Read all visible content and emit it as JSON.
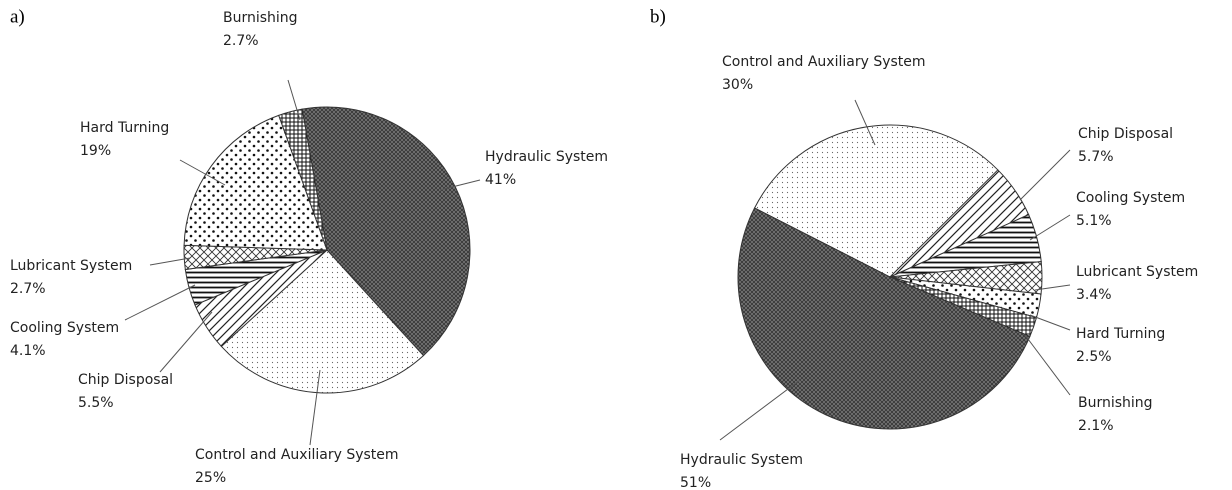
{
  "chart_data": [
    {
      "type": "pie",
      "title": "a)",
      "categories": [
        "Hydraulic System",
        "Control and Auxiliary System",
        "Chip Disposal",
        "Cooling System",
        "Lubricant System",
        "Hard Turning",
        "Burnishing"
      ],
      "values": [
        41,
        25,
        5.5,
        4.1,
        2.7,
        19,
        2.7
      ],
      "value_labels": [
        "41%",
        "25%",
        "5.5%",
        "4.1%",
        "2.7%",
        "19%",
        "2.7%"
      ],
      "patterns": [
        "dense-crosshatch",
        "fine-dots",
        "wide-diagonal",
        "horizontal-lines",
        "diamond-cross",
        "coarse-dots",
        "square-grid"
      ]
    },
    {
      "type": "pie",
      "title": "b)",
      "categories": [
        "Control and Auxiliary System",
        "Chip Disposal",
        "Cooling System",
        "Lubricant System",
        "Hard Turning",
        "Burnishing",
        "Hydraulic System"
      ],
      "values": [
        30,
        5.7,
        5.1,
        3.4,
        2.5,
        2.1,
        51
      ],
      "value_labels": [
        "30%",
        "5.7%",
        "5.1%",
        "3.4%",
        "2.5%",
        "2.1%",
        "51%"
      ],
      "patterns": [
        "fine-dots",
        "wide-diagonal",
        "horizontal-lines",
        "diamond-cross",
        "coarse-dots",
        "square-grid",
        "dense-crosshatch"
      ]
    }
  ]
}
